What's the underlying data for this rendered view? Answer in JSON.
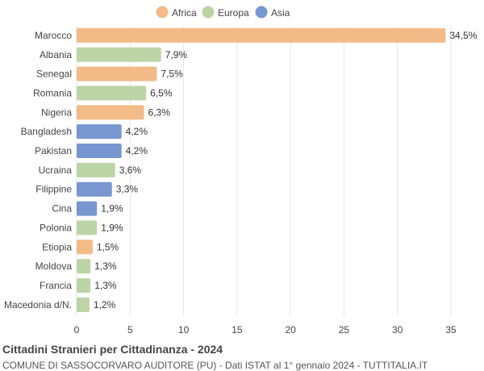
{
  "colors": {
    "Africa": "#f2bb87",
    "Europa": "#bdd4a6",
    "Asia": "#7896cf",
    "grid": "#e6e6e6",
    "text": "#444444"
  },
  "chart_data": {
    "type": "bar",
    "orientation": "horizontal",
    "categories": [
      "Marocco",
      "Albania",
      "Senegal",
      "Romania",
      "Nigeria",
      "Bangladesh",
      "Pakistan",
      "Ucraina",
      "Filippine",
      "Cina",
      "Polonia",
      "Etiopia",
      "Moldova",
      "Francia",
      "Macedonia d/N."
    ],
    "values": [
      34.5,
      7.9,
      7.5,
      6.5,
      6.3,
      4.2,
      4.2,
      3.6,
      3.3,
      1.9,
      1.9,
      1.5,
      1.3,
      1.3,
      1.2
    ],
    "value_labels": [
      "34,5%",
      "7,9%",
      "7,5%",
      "6,5%",
      "6,3%",
      "4,2%",
      "4,2%",
      "3,6%",
      "3,3%",
      "1,9%",
      "1,9%",
      "1,5%",
      "1,3%",
      "1,3%",
      "1,2%"
    ],
    "groups": [
      "Africa",
      "Europa",
      "Africa",
      "Europa",
      "Africa",
      "Asia",
      "Asia",
      "Europa",
      "Asia",
      "Asia",
      "Europa",
      "Africa",
      "Europa",
      "Europa",
      "Europa"
    ],
    "legend": [
      "Africa",
      "Europa",
      "Asia"
    ],
    "legend_position": "top-center",
    "xlim": [
      0,
      35
    ],
    "xticks": [
      0,
      5,
      10,
      15,
      20,
      25,
      30,
      35
    ],
    "grid": true
  },
  "footer": {
    "title": "Cittadini Stranieri per Cittadinanza - 2024",
    "subtitle": "COMUNE DI SASSOCORVARO AUDITORE (PU) - Dati ISTAT al 1° gennaio 2024 - TUTTITALIA.IT"
  }
}
